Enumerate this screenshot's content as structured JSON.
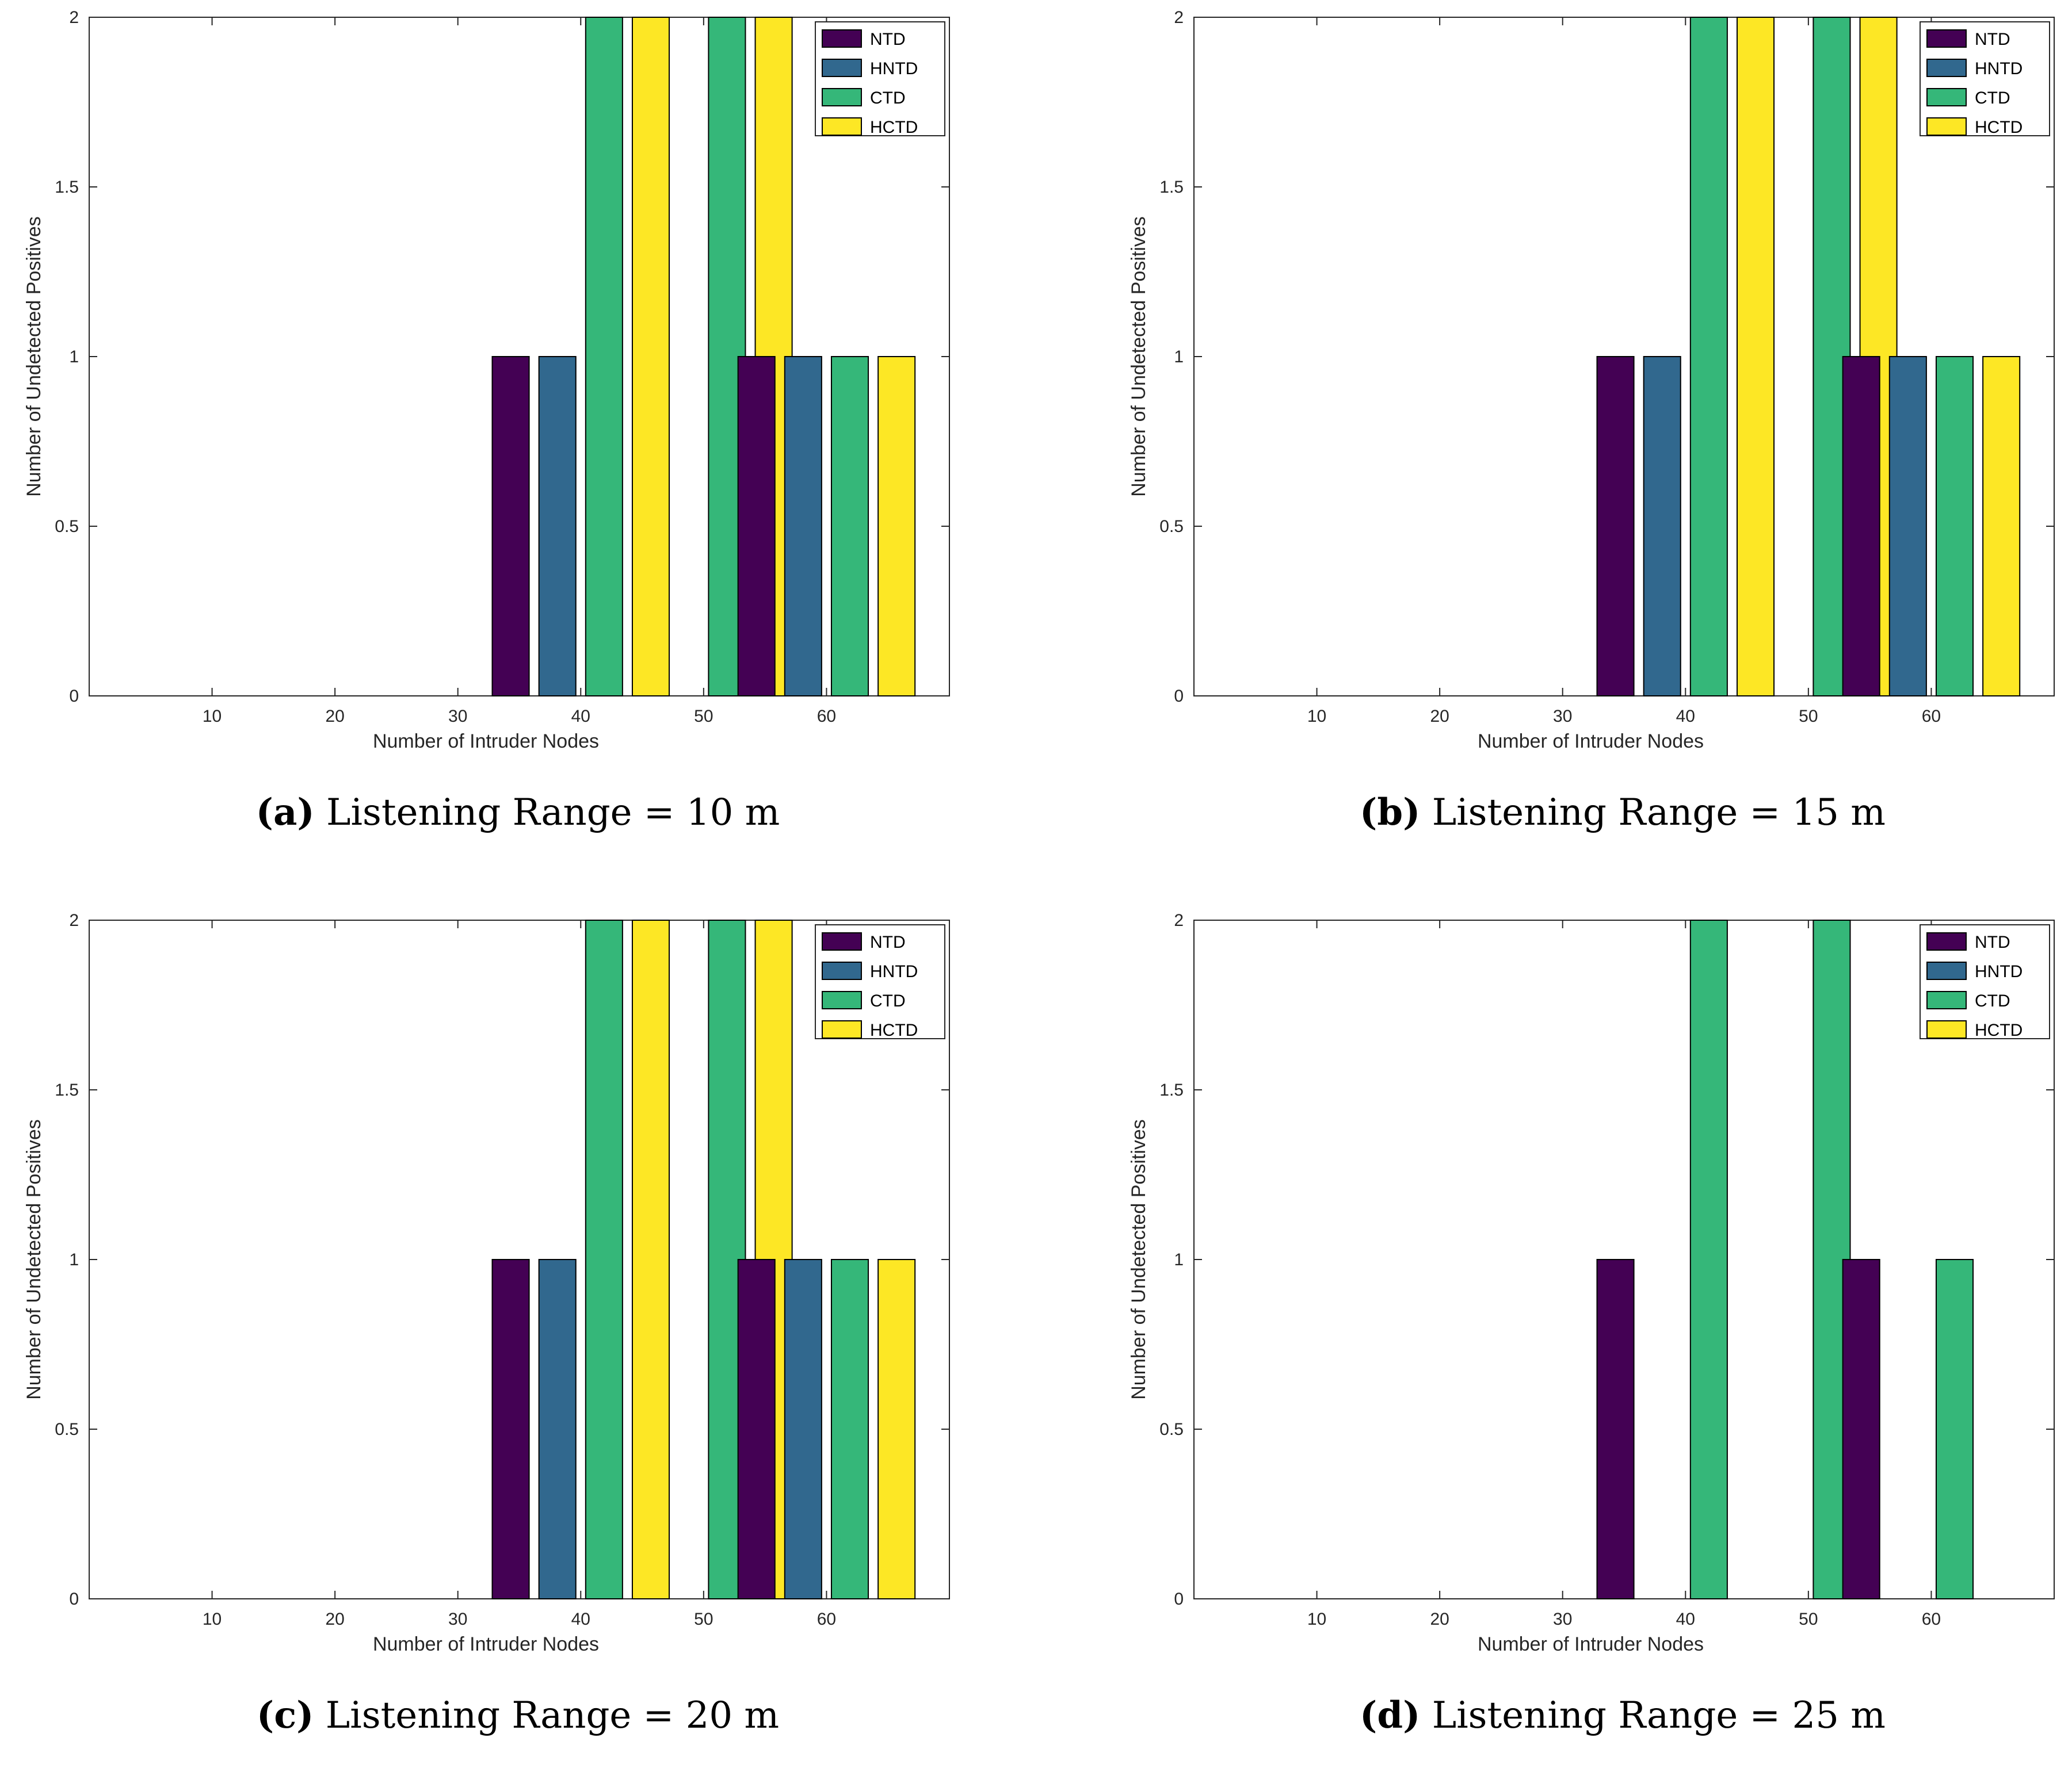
{
  "chart_data": [
    {
      "type": "bar",
      "subcaption_letter": "(a)",
      "subcaption_text": "Listening Range = 10 m",
      "xlabel": "Number of Intruder Nodes",
      "ylabel": "Number of Undetected Positives",
      "xlim": [
        0,
        70
      ],
      "ylim": [
        0,
        2
      ],
      "xticks": [
        10,
        20,
        30,
        40,
        50,
        60
      ],
      "yticks": [
        0,
        0.5,
        1,
        1.5,
        2
      ],
      "ytick_labels": [
        "0",
        "0.5",
        "1",
        "1.5",
        "2"
      ],
      "categories": [
        10,
        20,
        30,
        40,
        50,
        60
      ],
      "series": [
        {
          "name": "NTD",
          "color": "#440154",
          "values": [
            0,
            0,
            0,
            1,
            0,
            1
          ]
        },
        {
          "name": "HNTD",
          "color": "#31688e",
          "values": [
            0,
            0,
            0,
            1,
            0,
            1
          ]
        },
        {
          "name": "CTD",
          "color": "#35b779",
          "values": [
            0,
            0,
            0,
            2,
            2,
            1
          ]
        },
        {
          "name": "HCTD",
          "color": "#fde725",
          "values": [
            0,
            0,
            0,
            2,
            2,
            1
          ]
        }
      ],
      "legend": "top-right"
    },
    {
      "type": "bar",
      "subcaption_letter": "(b)",
      "subcaption_text": "Listening Range = 15 m",
      "xlabel": "Number of Intruder Nodes",
      "ylabel": "Number of Undetected Positives",
      "xlim": [
        0,
        70
      ],
      "ylim": [
        0,
        2
      ],
      "xticks": [
        10,
        20,
        30,
        40,
        50,
        60
      ],
      "yticks": [
        0,
        0.5,
        1,
        1.5,
        2
      ],
      "ytick_labels": [
        "0",
        "0.5",
        "1",
        "1.5",
        "2"
      ],
      "categories": [
        10,
        20,
        30,
        40,
        50,
        60
      ],
      "series": [
        {
          "name": "NTD",
          "color": "#440154",
          "values": [
            0,
            0,
            0,
            1,
            0,
            1
          ]
        },
        {
          "name": "HNTD",
          "color": "#31688e",
          "values": [
            0,
            0,
            0,
            1,
            0,
            1
          ]
        },
        {
          "name": "CTD",
          "color": "#35b779",
          "values": [
            0,
            0,
            0,
            2,
            2,
            1
          ]
        },
        {
          "name": "HCTD",
          "color": "#fde725",
          "values": [
            0,
            0,
            0,
            2,
            2,
            1
          ]
        }
      ],
      "legend": "top-right"
    },
    {
      "type": "bar",
      "subcaption_letter": "(c)",
      "subcaption_text": "Listening Range = 20 m",
      "xlabel": "Number of Intruder Nodes",
      "ylabel": "Number of Undetected Positives",
      "xlim": [
        0,
        70
      ],
      "ylim": [
        0,
        2
      ],
      "xticks": [
        10,
        20,
        30,
        40,
        50,
        60
      ],
      "yticks": [
        0,
        0.5,
        1,
        1.5,
        2
      ],
      "ytick_labels": [
        "0",
        "0.5",
        "1",
        "1.5",
        "2"
      ],
      "categories": [
        10,
        20,
        30,
        40,
        50,
        60
      ],
      "series": [
        {
          "name": "NTD",
          "color": "#440154",
          "values": [
            0,
            0,
            0,
            1,
            0,
            1
          ]
        },
        {
          "name": "HNTD",
          "color": "#31688e",
          "values": [
            0,
            0,
            0,
            1,
            0,
            1
          ]
        },
        {
          "name": "CTD",
          "color": "#35b779",
          "values": [
            0,
            0,
            0,
            2,
            2,
            1
          ]
        },
        {
          "name": "HCTD",
          "color": "#fde725",
          "values": [
            0,
            0,
            0,
            2,
            2,
            1
          ]
        }
      ],
      "legend": "top-right"
    },
    {
      "type": "bar",
      "subcaption_letter": "(d)",
      "subcaption_text": "Listening Range = 25 m",
      "xlabel": "Number of Intruder Nodes",
      "ylabel": "Number of Undetected Positives",
      "xlim": [
        0,
        70
      ],
      "ylim": [
        0,
        2
      ],
      "xticks": [
        10,
        20,
        30,
        40,
        50,
        60
      ],
      "yticks": [
        0,
        0.5,
        1,
        1.5,
        2
      ],
      "ytick_labels": [
        "0",
        "0.5",
        "1",
        "1.5",
        "2"
      ],
      "categories": [
        10,
        20,
        30,
        40,
        50,
        60
      ],
      "series": [
        {
          "name": "NTD",
          "color": "#440154",
          "values": [
            0,
            0,
            0,
            1,
            0,
            1
          ]
        },
        {
          "name": "HNTD",
          "color": "#31688e",
          "values": [
            0,
            0,
            0,
            0,
            0,
            0
          ]
        },
        {
          "name": "CTD",
          "color": "#35b779",
          "values": [
            0,
            0,
            0,
            2,
            2,
            1
          ]
        },
        {
          "name": "HCTD",
          "color": "#fde725",
          "values": [
            0,
            0,
            0,
            0,
            0,
            0
          ]
        }
      ],
      "legend": "top-right"
    }
  ]
}
